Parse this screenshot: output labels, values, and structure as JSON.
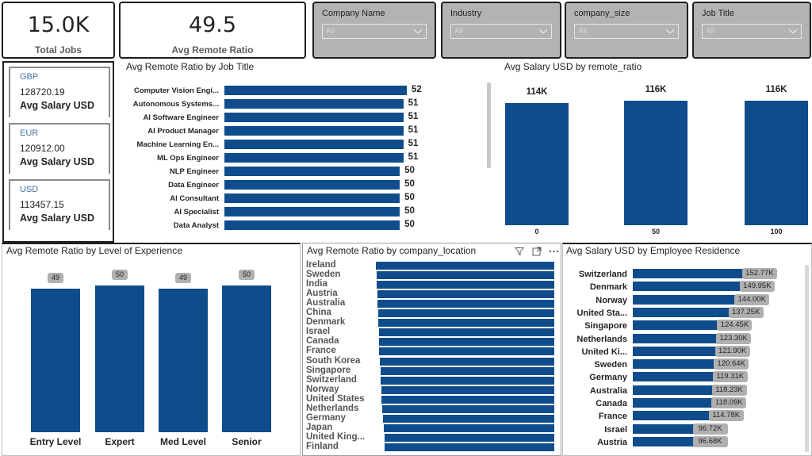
{
  "kpis": {
    "total_jobs": {
      "value": "15.0K",
      "label": "Total Jobs"
    },
    "avg_remote_ratio": {
      "value": "49.5",
      "label": "Avg Remote Ratio"
    }
  },
  "slicers": [
    {
      "title": "Company Name",
      "value": "All"
    },
    {
      "title": "Industry",
      "value": "All"
    },
    {
      "title": "company_size",
      "value": "All"
    },
    {
      "title": "Job Title",
      "value": "All"
    }
  ],
  "currency_cards": [
    {
      "code": "GBP",
      "amount": "128720.19",
      "label": "Avg Salary USD"
    },
    {
      "code": "EUR",
      "amount": "120912.00",
      "label": "Avg Salary USD"
    },
    {
      "code": "USD",
      "amount": "113457.15",
      "label": "Avg Salary USD"
    }
  ],
  "colors": {
    "bar": "#0f4c8c",
    "slicer_bg": "#b3b3b3",
    "tag_bg": "#b0b0b0"
  },
  "chart_data": [
    {
      "id": "remote_by_title",
      "type": "bar",
      "orientation": "horizontal",
      "title": "Avg Remote Ratio by Job Title",
      "categories": [
        "Computer Vision Engi...",
        "Autonomous Systems...",
        "AI Software Engineer",
        "AI Product Manager",
        "Machine Learning En...",
        "ML Ops Engineer",
        "NLP Engineer",
        "Data Engineer",
        "AI Consultant",
        "AI Specialist",
        "Data Analyst"
      ],
      "values": [
        52,
        51,
        51,
        51,
        51,
        51,
        50,
        50,
        50,
        50,
        50
      ],
      "labels": [
        "52",
        "51",
        "51",
        "51",
        "51",
        "51",
        "50",
        "50",
        "50",
        "50",
        "50"
      ]
    },
    {
      "id": "salary_by_remote",
      "type": "bar",
      "title": "Avg Salary USD by remote_ratio",
      "categories": [
        "0",
        "50",
        "100"
      ],
      "values": [
        114000,
        116000,
        116000
      ],
      "labels": [
        "114K",
        "116K",
        "116K"
      ]
    },
    {
      "id": "remote_by_experience",
      "type": "bar",
      "title": "Avg Remote Ratio by Level of Experience",
      "categories": [
        "Entry Level",
        "Expert",
        "Med Level",
        "Senior"
      ],
      "values": [
        49,
        50,
        49,
        50
      ],
      "labels": [
        "49",
        "50",
        "49",
        "50"
      ]
    },
    {
      "id": "remote_by_location",
      "type": "bar",
      "orientation": "horizontal",
      "title": "Avg Remote Ratio by company_location",
      "categories": [
        "Ireland",
        "Sweden",
        "India",
        "Austria",
        "Australia",
        "China",
        "Denmark",
        "Israel",
        "Canada",
        "France",
        "South Korea",
        "Singapore",
        "Switzerland",
        "Norway",
        "United States",
        "Netherlands",
        "Germany",
        "Japan",
        "United King...",
        "Finland"
      ],
      "values": [
        51.4,
        51.2,
        51.1,
        51.0,
        50.9,
        50.8,
        50.7,
        50.6,
        50.5,
        50.4,
        50.2,
        50.1,
        50.0,
        49.9,
        49.8,
        49.6,
        49.4,
        49.2,
        49.0,
        48.8
      ]
    },
    {
      "id": "salary_by_residence",
      "type": "bar",
      "orientation": "horizontal",
      "title": "Avg Salary USD by Employee Residence",
      "categories": [
        "Switzerland",
        "Denmark",
        "Norway",
        "United Sta...",
        "Singapore",
        "Netherlands",
        "United Ki...",
        "Sweden",
        "Germany",
        "Australia",
        "Canada",
        "France",
        "Israel",
        "Austria"
      ],
      "values": [
        152770,
        149950,
        144000,
        137250,
        124450,
        123300,
        121900,
        120640,
        119310,
        118230,
        118090,
        114780,
        96720,
        96680
      ],
      "labels": [
        "152.77K",
        "149.95K",
        "144.00K",
        "137.25K",
        "124.45K",
        "123.30K",
        "121.90K",
        "120.64K",
        "119.31K",
        "118.23K",
        "118.09K",
        "114.78K",
        "96.72K",
        "96.68K"
      ]
    }
  ]
}
